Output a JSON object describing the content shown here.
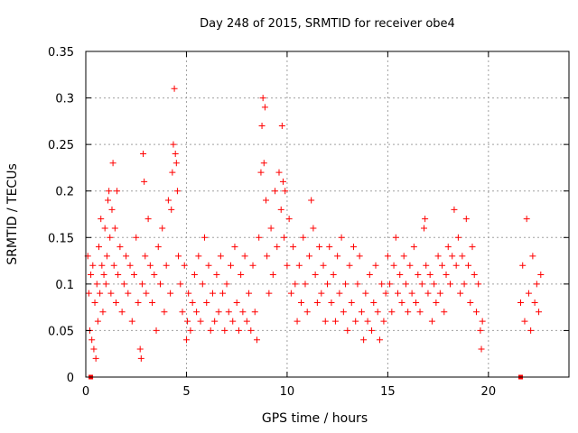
{
  "chart_data": {
    "type": "scatter",
    "title": "Day 248 of 2015, SRMTID for receiver obe4",
    "xlabel": "GPS time / hours",
    "ylabel": "SRMTID / TECUs",
    "xlim": [
      0,
      24
    ],
    "ylim": [
      0,
      0.35
    ],
    "x_ticks": [
      0,
      5,
      10,
      15,
      20
    ],
    "x_tick_labels": [
      "0",
      "5",
      "10",
      "15",
      "20"
    ],
    "y_ticks": [
      0,
      0.05,
      0.1,
      0.15,
      0.2,
      0.25,
      0.3,
      0.35
    ],
    "y_tick_labels": [
      "0",
      "0.05",
      "0.1",
      "0.15",
      "0.2",
      "0.25",
      "0.3",
      "0.35"
    ],
    "grid": true,
    "marker": "+",
    "color": "#ff0000",
    "series": [
      {
        "name": "SRMTID",
        "points": [
          [
            0.1,
            0.13
          ],
          [
            0.15,
            0.09
          ],
          [
            0.2,
            0.05
          ],
          [
            0.25,
            0.11
          ],
          [
            0.3,
            0.04
          ],
          [
            0.35,
            0.12
          ],
          [
            0.4,
            0.03
          ],
          [
            0.45,
            0.08
          ],
          [
            0.5,
            0.02
          ],
          [
            0.55,
            0.1
          ],
          [
            0.6,
            0.06
          ],
          [
            0.65,
            0.14
          ],
          [
            0.7,
            0.09
          ],
          [
            0.75,
            0.17
          ],
          [
            0.8,
            0.12
          ],
          [
            0.85,
            0.07
          ],
          [
            0.9,
            0.11
          ],
          [
            0.95,
            0.16
          ],
          [
            1.0,
            0.1
          ],
          [
            1.05,
            0.13
          ],
          [
            1.1,
            0.19
          ],
          [
            1.15,
            0.2
          ],
          [
            1.2,
            0.15
          ],
          [
            1.25,
            0.09
          ],
          [
            1.3,
            0.18
          ],
          [
            1.35,
            0.23
          ],
          [
            1.4,
            0.12
          ],
          [
            1.45,
            0.16
          ],
          [
            1.5,
            0.08
          ],
          [
            1.55,
            0.2
          ],
          [
            1.6,
            0.11
          ],
          [
            1.7,
            0.14
          ],
          [
            1.8,
            0.07
          ],
          [
            1.9,
            0.1
          ],
          [
            2.0,
            0.13
          ],
          [
            2.1,
            0.09
          ],
          [
            2.2,
            0.12
          ],
          [
            2.3,
            0.06
          ],
          [
            2.4,
            0.11
          ],
          [
            2.5,
            0.15
          ],
          [
            2.6,
            0.08
          ],
          [
            2.7,
            0.03
          ],
          [
            2.75,
            0.02
          ],
          [
            2.8,
            0.1
          ],
          [
            2.85,
            0.24
          ],
          [
            2.9,
            0.21
          ],
          [
            2.95,
            0.13
          ],
          [
            3.0,
            0.09
          ],
          [
            3.1,
            0.17
          ],
          [
            3.2,
            0.12
          ],
          [
            3.3,
            0.08
          ],
          [
            3.4,
            0.11
          ],
          [
            3.5,
            0.05
          ],
          [
            3.6,
            0.14
          ],
          [
            3.7,
            0.1
          ],
          [
            3.8,
            0.16
          ],
          [
            3.9,
            0.07
          ],
          [
            4.0,
            0.12
          ],
          [
            4.1,
            0.19
          ],
          [
            4.2,
            0.09
          ],
          [
            4.25,
            0.18
          ],
          [
            4.3,
            0.22
          ],
          [
            4.35,
            0.25
          ],
          [
            4.4,
            0.31
          ],
          [
            4.45,
            0.24
          ],
          [
            4.5,
            0.23
          ],
          [
            4.55,
            0.2
          ],
          [
            4.6,
            0.13
          ],
          [
            4.7,
            0.1
          ],
          [
            4.8,
            0.07
          ],
          [
            4.9,
            0.12
          ],
          [
            5.0,
            0.04
          ],
          [
            5.05,
            0.06
          ],
          [
            5.1,
            0.09
          ],
          [
            5.2,
            0.05
          ],
          [
            5.3,
            0.08
          ],
          [
            5.4,
            0.11
          ],
          [
            5.5,
            0.07
          ],
          [
            5.6,
            0.13
          ],
          [
            5.7,
            0.06
          ],
          [
            5.8,
            0.1
          ],
          [
            5.9,
            0.15
          ],
          [
            6.0,
            0.08
          ],
          [
            6.1,
            0.12
          ],
          [
            6.2,
            0.05
          ],
          [
            6.3,
            0.09
          ],
          [
            6.4,
            0.06
          ],
          [
            6.5,
            0.11
          ],
          [
            6.6,
            0.07
          ],
          [
            6.7,
            0.13
          ],
          [
            6.8,
            0.09
          ],
          [
            6.9,
            0.05
          ],
          [
            7.0,
            0.1
          ],
          [
            7.1,
            0.07
          ],
          [
            7.2,
            0.12
          ],
          [
            7.3,
            0.06
          ],
          [
            7.4,
            0.14
          ],
          [
            7.5,
            0.08
          ],
          [
            7.6,
            0.05
          ],
          [
            7.7,
            0.11
          ],
          [
            7.8,
            0.07
          ],
          [
            7.9,
            0.13
          ],
          [
            8.0,
            0.06
          ],
          [
            8.1,
            0.09
          ],
          [
            8.2,
            0.05
          ],
          [
            8.3,
            0.12
          ],
          [
            8.4,
            0.07
          ],
          [
            8.5,
            0.04
          ],
          [
            8.6,
            0.15
          ],
          [
            8.7,
            0.22
          ],
          [
            8.75,
            0.27
          ],
          [
            8.8,
            0.3
          ],
          [
            8.85,
            0.23
          ],
          [
            8.9,
            0.29
          ],
          [
            8.95,
            0.19
          ],
          [
            9.0,
            0.13
          ],
          [
            9.1,
            0.09
          ],
          [
            9.2,
            0.16
          ],
          [
            9.3,
            0.11
          ],
          [
            9.4,
            0.2
          ],
          [
            9.5,
            0.14
          ],
          [
            9.6,
            0.22
          ],
          [
            9.7,
            0.18
          ],
          [
            9.75,
            0.27
          ],
          [
            9.8,
            0.21
          ],
          [
            9.85,
            0.15
          ],
          [
            9.9,
            0.2
          ],
          [
            10.0,
            0.12
          ],
          [
            10.1,
            0.17
          ],
          [
            10.2,
            0.09
          ],
          [
            10.3,
            0.14
          ],
          [
            10.4,
            0.1
          ],
          [
            10.5,
            0.06
          ],
          [
            10.6,
            0.12
          ],
          [
            10.7,
            0.08
          ],
          [
            10.8,
            0.15
          ],
          [
            10.9,
            0.1
          ],
          [
            11.0,
            0.07
          ],
          [
            11.1,
            0.13
          ],
          [
            11.2,
            0.19
          ],
          [
            11.3,
            0.16
          ],
          [
            11.4,
            0.11
          ],
          [
            11.5,
            0.08
          ],
          [
            11.6,
            0.14
          ],
          [
            11.7,
            0.09
          ],
          [
            11.8,
            0.12
          ],
          [
            11.9,
            0.06
          ],
          [
            12.0,
            0.1
          ],
          [
            12.1,
            0.14
          ],
          [
            12.2,
            0.08
          ],
          [
            12.3,
            0.11
          ],
          [
            12.4,
            0.06
          ],
          [
            12.5,
            0.13
          ],
          [
            12.6,
            0.09
          ],
          [
            12.7,
            0.15
          ],
          [
            12.8,
            0.07
          ],
          [
            12.9,
            0.1
          ],
          [
            13.0,
            0.05
          ],
          [
            13.1,
            0.12
          ],
          [
            13.2,
            0.08
          ],
          [
            13.3,
            0.14
          ],
          [
            13.4,
            0.06
          ],
          [
            13.5,
            0.1
          ],
          [
            13.6,
            0.13
          ],
          [
            13.7,
            0.07
          ],
          [
            13.8,
            0.04
          ],
          [
            13.9,
            0.09
          ],
          [
            14.0,
            0.06
          ],
          [
            14.1,
            0.11
          ],
          [
            14.2,
            0.05
          ],
          [
            14.3,
            0.08
          ],
          [
            14.4,
            0.12
          ],
          [
            14.5,
            0.07
          ],
          [
            14.6,
            0.04
          ],
          [
            14.7,
            0.1
          ],
          [
            14.8,
            0.06
          ],
          [
            14.9,
            0.09
          ],
          [
            15.0,
            0.13
          ],
          [
            15.1,
            0.1
          ],
          [
            15.2,
            0.07
          ],
          [
            15.3,
            0.12
          ],
          [
            15.4,
            0.15
          ],
          [
            15.5,
            0.09
          ],
          [
            15.6,
            0.11
          ],
          [
            15.7,
            0.08
          ],
          [
            15.8,
            0.13
          ],
          [
            15.9,
            0.1
          ],
          [
            16.0,
            0.07
          ],
          [
            16.1,
            0.12
          ],
          [
            16.2,
            0.09
          ],
          [
            16.3,
            0.14
          ],
          [
            16.4,
            0.08
          ],
          [
            16.5,
            0.11
          ],
          [
            16.6,
            0.07
          ],
          [
            16.7,
            0.1
          ],
          [
            16.8,
            0.16
          ],
          [
            16.85,
            0.17
          ],
          [
            16.9,
            0.12
          ],
          [
            17.0,
            0.09
          ],
          [
            17.1,
            0.11
          ],
          [
            17.2,
            0.06
          ],
          [
            17.3,
            0.1
          ],
          [
            17.4,
            0.08
          ],
          [
            17.5,
            0.13
          ],
          [
            17.6,
            0.09
          ],
          [
            17.7,
            0.12
          ],
          [
            17.8,
            0.07
          ],
          [
            17.9,
            0.11
          ],
          [
            18.0,
            0.14
          ],
          [
            18.1,
            0.1
          ],
          [
            18.2,
            0.13
          ],
          [
            18.3,
            0.18
          ],
          [
            18.4,
            0.12
          ],
          [
            18.5,
            0.15
          ],
          [
            18.6,
            0.09
          ],
          [
            18.7,
            0.13
          ],
          [
            18.8,
            0.1
          ],
          [
            18.9,
            0.17
          ],
          [
            19.0,
            0.12
          ],
          [
            19.1,
            0.08
          ],
          [
            19.2,
            0.14
          ],
          [
            19.3,
            0.11
          ],
          [
            19.4,
            0.07
          ],
          [
            19.5,
            0.1
          ],
          [
            19.6,
            0.05
          ],
          [
            19.65,
            0.03
          ],
          [
            19.7,
            0.06
          ],
          [
            21.6,
            0.08
          ],
          [
            21.7,
            0.12
          ],
          [
            21.8,
            0.06
          ],
          [
            21.9,
            0.17
          ],
          [
            22.0,
            0.09
          ],
          [
            22.1,
            0.05
          ],
          [
            22.2,
            0.13
          ],
          [
            22.3,
            0.08
          ],
          [
            22.4,
            0.1
          ],
          [
            22.5,
            0.07
          ],
          [
            22.6,
            0.11
          ]
        ]
      }
    ],
    "markers_on_axis": [
      0.25,
      21.6
    ]
  }
}
